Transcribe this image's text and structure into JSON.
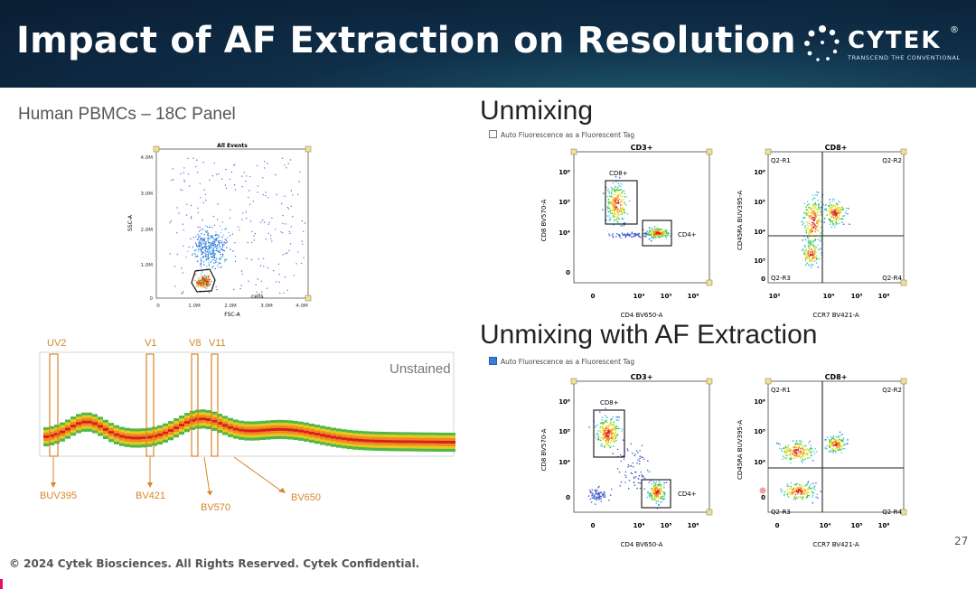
{
  "slide": {
    "title": "Impact of AF Extraction on Resolution",
    "subtitle": "Human PBMCs – 18C Panel",
    "footer": "© 2024 Cytek Biosciences. All Rights Reserved. Cytek Confidential.",
    "page_number": "27"
  },
  "logo": {
    "word": "CYTEK",
    "reg": "®",
    "tagline": "TRANSCEND THE CONVENTIONAL",
    "icon": "dots-ring-icon"
  },
  "sections": {
    "unmixing": {
      "heading": "Unmixing",
      "checkbox_label": "Auto Fluorescence as a Fluorescent Tag",
      "checked": false
    },
    "unmixing_af": {
      "heading": "Unmixing with AF Extraction",
      "checkbox_label": "Auto Fluorescence as a Fluorescent Tag",
      "checked": true
    }
  },
  "scatter_plot": {
    "title": "All Events",
    "gate_label": "cells",
    "x_label": "FSC-A",
    "y_label": "SSC-A",
    "x_ticks": [
      "0",
      "1.0M",
      "2.0M",
      "3.0M",
      "4.0M"
    ],
    "y_ticks": [
      "0",
      "1.0M",
      "2.0M",
      "3.0M",
      "4.0M"
    ]
  },
  "spectrum": {
    "label": "Unstained",
    "lasers": [
      "UV2",
      "V1",
      "V8",
      "V11"
    ],
    "fluors": [
      "BUV395",
      "BV421",
      "BV570",
      "BV650"
    ]
  },
  "flow_plots": {
    "cd3": {
      "title": "CD3+",
      "x_label": "CD4 BV650-A",
      "y_label": "CD8 BV570-A",
      "x_ticks": [
        "0",
        "10⁴",
        "10⁵",
        "10⁶"
      ],
      "y_ticks": [
        "10⁶",
        "10⁵",
        "10⁴",
        "0"
      ],
      "gate_a": "CD8+",
      "gate_b": "CD4+"
    },
    "cd8": {
      "title": "CD8+",
      "x_label": "CCR7 BV421-A",
      "y_label": "CD45RA BUV395-A",
      "x_ticks": [
        "10²",
        "10⁴",
        "10⁵",
        "10⁶"
      ],
      "x_ticks_af": [
        "0",
        "10⁴",
        "10⁵",
        "10⁶"
      ],
      "y_ticks": [
        "10⁶",
        "10⁵",
        "10⁴",
        "10³",
        "0"
      ],
      "y_ticks_af": [
        "10⁶",
        "10⁵",
        "10⁴",
        "0"
      ],
      "quadrants": [
        "Q2-R1",
        "Q2-R2",
        "Q2-R3",
        "Q2-R4"
      ]
    }
  }
}
